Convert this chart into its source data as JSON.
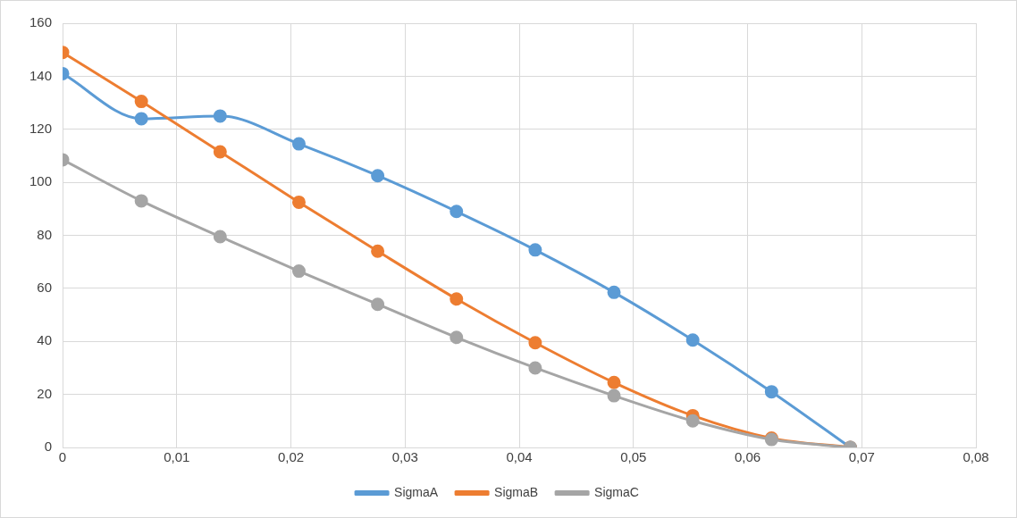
{
  "chart_data": {
    "type": "line",
    "x": [
      0,
      0.0069,
      0.0138,
      0.0207,
      0.0276,
      0.0345,
      0.0414,
      0.0483,
      0.0552,
      0.0621,
      0.069
    ],
    "series": [
      {
        "name": "SigmaA",
        "color": "#5b9bd5",
        "values": [
          141,
          124,
          125,
          114.5,
          102.5,
          89,
          74.5,
          58.5,
          40.5,
          21,
          0
        ]
      },
      {
        "name": "SigmaB",
        "color": "#ed7d31",
        "values": [
          149,
          130.5,
          111.5,
          92.5,
          74,
          56,
          39.5,
          24.5,
          12,
          3.5,
          0
        ]
      },
      {
        "name": "SigmaC",
        "color": "#a5a5a5",
        "values": [
          108.5,
          93,
          79.5,
          66.5,
          54,
          41.5,
          30,
          19.5,
          10,
          3,
          0
        ]
      }
    ],
    "xlim": [
      0,
      0.08
    ],
    "xticks": [
      0,
      {
        "value": 0.01,
        "label": "0,01"
      },
      {
        "value": 0.02,
        "label": "0,02"
      },
      {
        "value": 0.03,
        "label": "0,03"
      },
      {
        "value": 0.04,
        "label": "0,04"
      },
      {
        "value": 0.05,
        "label": "0,05"
      },
      {
        "value": 0.06,
        "label": "0,06"
      },
      {
        "value": 0.07,
        "label": "0,07"
      },
      {
        "value": 0.08,
        "label": "0,08"
      }
    ],
    "ylim": [
      0,
      160
    ],
    "yticks": [
      0,
      20,
      40,
      60,
      80,
      100,
      120,
      140,
      160
    ],
    "grid": true,
    "legend": "bottom",
    "marker": "circle",
    "line_style": "solid"
  }
}
